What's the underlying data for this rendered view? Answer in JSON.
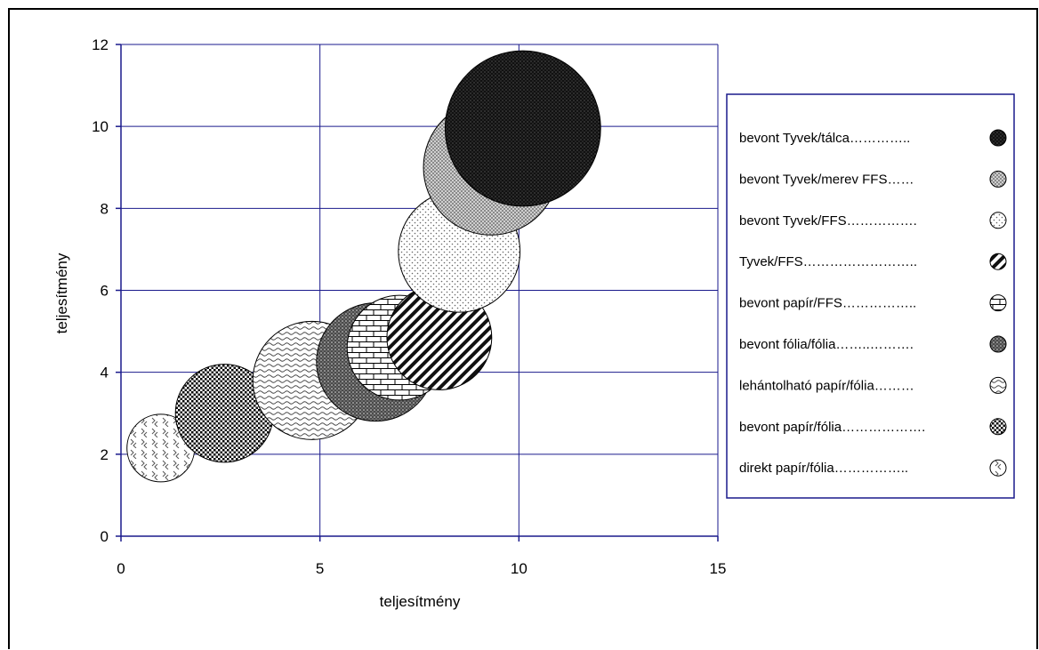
{
  "chart_data": {
    "type": "bubble",
    "xlabel": "teljesítmény",
    "ylabel": "teljesítmény",
    "xlim": [
      0,
      15
    ],
    "ylim": [
      0,
      12
    ],
    "x_ticks": [
      0,
      5,
      10,
      15
    ],
    "y_ticks": [
      0,
      2,
      4,
      6,
      8,
      10,
      12
    ],
    "grid": true,
    "legend_position": "right",
    "series": [
      {
        "name": "direkt papír/fólia",
        "legend_label": "direkt papír/fólia……………..",
        "x": 1.0,
        "y": 2.15,
        "size": 1.0,
        "pattern": "chevron"
      },
      {
        "name": "bevont papír/fólia",
        "legend_label": "bevont papír/fólia……………….",
        "x": 2.6,
        "y": 3.0,
        "size": 1.45,
        "pattern": "dense-dots"
      },
      {
        "name": "lehántolható papír/fólia",
        "legend_label": "lehántolható papír/fólia………",
        "x": 4.8,
        "y": 3.8,
        "size": 1.75,
        "pattern": "waves"
      },
      {
        "name": "bevont fólia/fólia",
        "legend_label": "bevont fólia/fólia……..……….",
        "x": 6.4,
        "y": 4.25,
        "size": 1.75,
        "pattern": "dark-dots"
      },
      {
        "name": "bevont papír/FFS",
        "legend_label": "bevont papír/FFS……………..",
        "x": 7.0,
        "y": 4.6,
        "size": 1.55,
        "pattern": "brick"
      },
      {
        "name": "Tyvek/FFS",
        "legend_label": "Tyvek/FFS……………………..",
        "x": 8.0,
        "y": 4.85,
        "size": 1.55,
        "pattern": "diagonal"
      },
      {
        "name": "bevont Tyvek/FFS",
        "legend_label": "bevont Tyvek/FFS…………….",
        "x": 8.5,
        "y": 6.95,
        "size": 1.8,
        "pattern": "light-dots"
      },
      {
        "name": "bevont Tyvek/merev FFS",
        "legend_label": "bevont Tyvek/merev FFS……",
        "x": 9.3,
        "y": 9.0,
        "size": 2.0,
        "pattern": "crosshatch"
      },
      {
        "name": "bevont Tyvek/tálca",
        "legend_label": "bevont Tyvek/tálca…………..",
        "x": 10.1,
        "y": 9.95,
        "size": 2.3,
        "pattern": "black"
      }
    ]
  }
}
